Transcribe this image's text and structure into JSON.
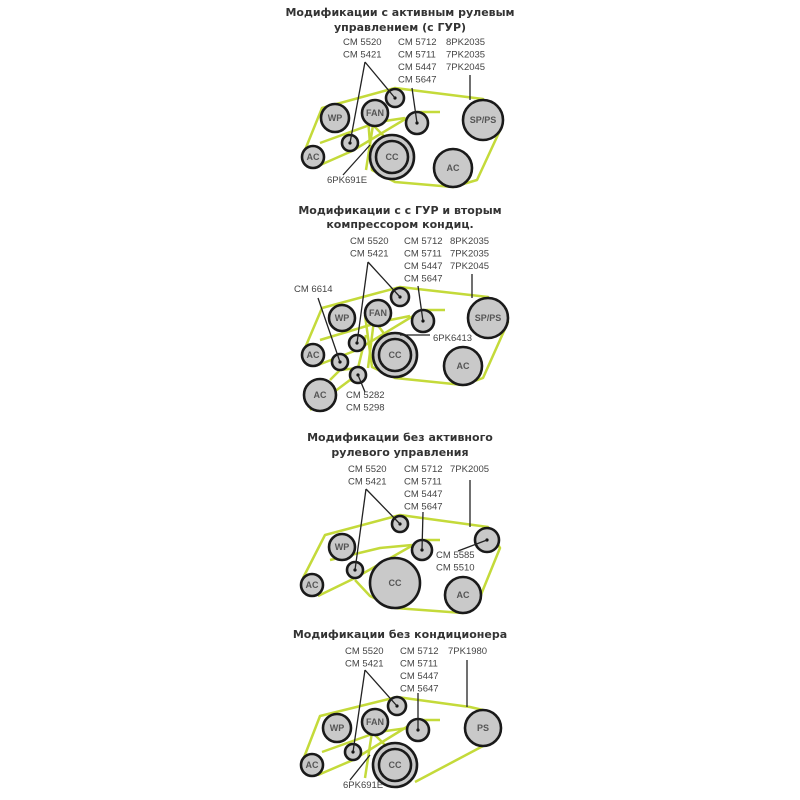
{
  "colors": {
    "belt": "#c4da3a",
    "pulley_fill": "#c9c9c9",
    "pulley_stroke": "#1a1a1a",
    "text": "#333333"
  },
  "diagrams": [
    {
      "title_lines": [
        "Модификации с активным рулевым",
        "управлением (с ГУР)"
      ],
      "part_groups": [
        [
          "CM 5520",
          "CM 5421"
        ],
        [
          "CM 5712",
          "CM 5711",
          "CM 5447",
          "CM 5647"
        ],
        [
          "8PK2035",
          "7PK2035",
          "7PK2045"
        ],
        [
          "6PK691E"
        ]
      ],
      "pulleys": [
        "",
        "WP",
        "FAN",
        "",
        "SP/PS",
        "",
        "AC",
        "CC",
        "AC"
      ]
    },
    {
      "title_lines": [
        "Модификации с с ГУР и вторым",
        "компрессором кондиц."
      ],
      "part_groups": [
        [
          "CM 5520",
          "CM 5421"
        ],
        [
          "CM 5712",
          "CM 5711",
          "CM 5447",
          "CM 5647"
        ],
        [
          "8PK2035",
          "7PK2035",
          "7PK2045"
        ],
        [
          "CM 6614"
        ],
        [
          "6PK6413"
        ],
        [
          "CM 5282",
          "CM 5298"
        ]
      ],
      "pulleys": [
        "",
        "WP",
        "FAN",
        "",
        "SP/PS",
        "",
        "AC",
        "CC",
        "",
        "AC",
        "",
        "AC"
      ]
    },
    {
      "title_lines": [
        "Модификации без активного",
        "рулевого управления"
      ],
      "part_groups": [
        [
          "CM 5520",
          "CM 5421"
        ],
        [
          "CM 5712",
          "CM 5711",
          "CM 5447",
          "CM 5647"
        ],
        [
          "7PK2005"
        ],
        [
          "CM 5585",
          "CM 5510"
        ]
      ],
      "pulleys": [
        "",
        "WP",
        "",
        "",
        "",
        "AC",
        "CC",
        "AC"
      ]
    },
    {
      "title_lines": [
        "Модификации без кондиционера"
      ],
      "part_groups": [
        [
          "CM 5520",
          "CM 5421"
        ],
        [
          "CM 5712",
          "CM 5711",
          "CM 5447",
          "CM 5647"
        ],
        [
          "7PK1980"
        ],
        [
          "6PK691E"
        ]
      ],
      "pulleys": [
        "",
        "WP",
        "FAN",
        "",
        "PS",
        "",
        "AC",
        "CC"
      ]
    }
  ]
}
